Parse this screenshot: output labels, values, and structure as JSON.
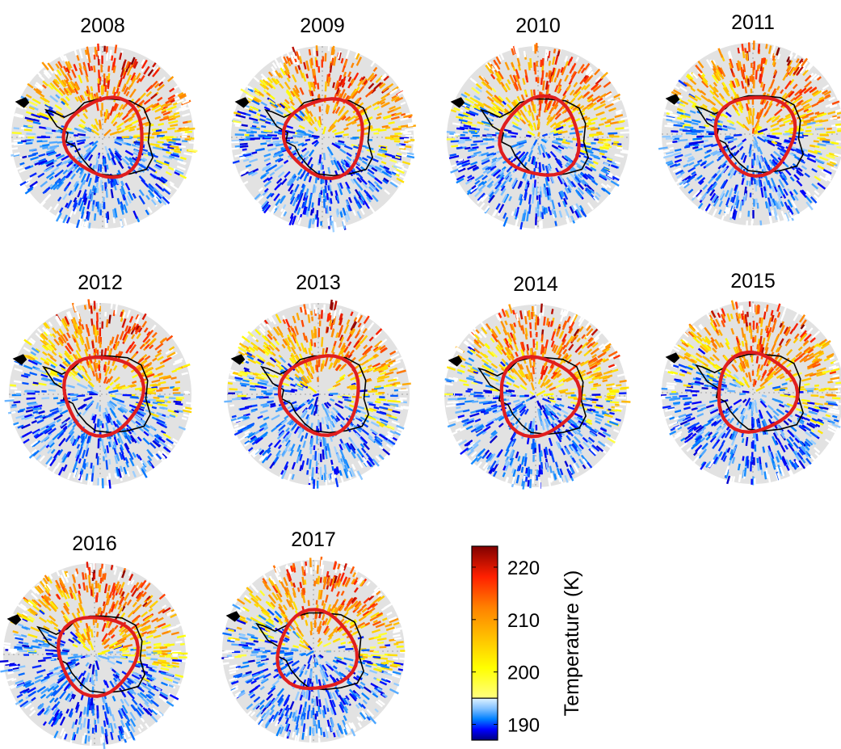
{
  "figure": {
    "panels": [
      {
        "title": "2008"
      },
      {
        "title": "2009"
      },
      {
        "title": "2010"
      },
      {
        "title": "2011"
      },
      {
        "title": "2012"
      },
      {
        "title": "2013"
      },
      {
        "title": "2014"
      },
      {
        "title": "2015"
      },
      {
        "title": "2016"
      },
      {
        "title": "2017"
      }
    ]
  },
  "colorbar": {
    "label": "Temperature (K)",
    "range": [
      187,
      224
    ],
    "ticks": [
      "190",
      "200",
      "210",
      "220"
    ],
    "tick_values": [
      190,
      200,
      210,
      220
    ],
    "divider_value": 195,
    "colors": {
      "low": [
        "#00007f",
        "#0000ff",
        "#0080ff",
        "#80c0ff",
        "#e0f4ff"
      ],
      "high": [
        "#ffff80",
        "#ffff00",
        "#ffc000",
        "#ff8000",
        "#ff2000",
        "#800000"
      ]
    }
  },
  "map_style": {
    "disk_fill": "#e2e2e2",
    "vortex_edge_color": "#e01e1e",
    "coastline_color": "#000000"
  }
}
